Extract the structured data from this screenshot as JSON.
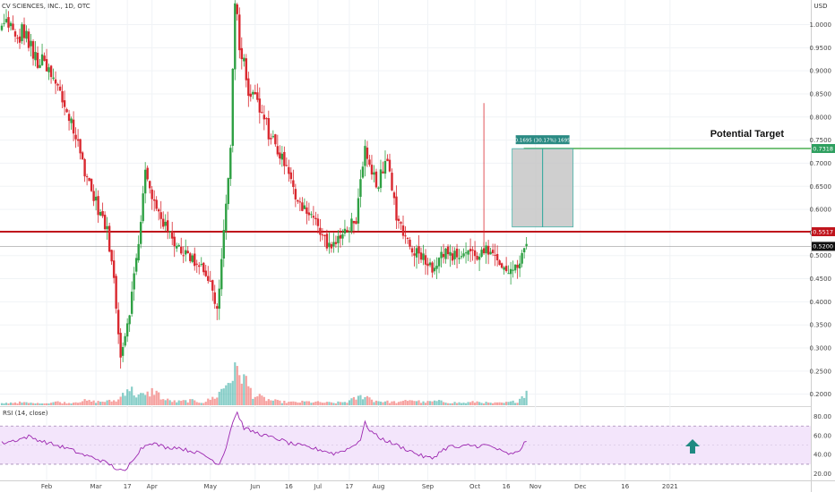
{
  "chart_data": [
    {
      "type": "candlestick",
      "symbol_title": "CV SCIENCES, INC., 1D, OTC",
      "currency": "USD",
      "ylim": [
        0.18,
        1.03
      ],
      "y_ticks": [
        "1.0000",
        "0.9500",
        "0.9000",
        "0.8500",
        "0.8000",
        "0.7500",
        "0.7000",
        "0.6500",
        "0.6000",
        "0.5500",
        "0.5000",
        "0.4500",
        "0.4000",
        "0.3500",
        "0.3000",
        "0.2500",
        "0.2000"
      ],
      "x_ticks": [
        "Feb",
        "Mar",
        "17",
        "Apr",
        "May",
        "Jun",
        "16",
        "Jul",
        "17",
        "Aug",
        "Sep",
        "Oct",
        "16",
        "Nov",
        "Dec",
        "16",
        "2021"
      ],
      "price_points": [
        {
          "t": 0,
          "c": 0.99
        },
        {
          "t": 3,
          "c": 1.01
        },
        {
          "t": 6,
          "c": 0.96
        },
        {
          "t": 10,
          "c": 0.99
        },
        {
          "t": 14,
          "c": 0.93
        },
        {
          "t": 19,
          "c": 0.91
        },
        {
          "t": 25,
          "c": 0.86
        },
        {
          "t": 31,
          "c": 0.79
        },
        {
          "t": 35,
          "c": 0.72
        },
        {
          "t": 40,
          "c": 0.64
        },
        {
          "t": 44,
          "c": 0.59
        },
        {
          "t": 47,
          "c": 0.55
        },
        {
          "t": 50,
          "c": 0.45
        },
        {
          "t": 53,
          "c": 0.28
        },
        {
          "t": 57,
          "c": 0.38
        },
        {
          "t": 61,
          "c": 0.53
        },
        {
          "t": 64,
          "c": 0.68
        },
        {
          "t": 67,
          "c": 0.62
        },
        {
          "t": 70,
          "c": 0.6
        },
        {
          "t": 73,
          "c": 0.56
        },
        {
          "t": 77,
          "c": 0.53
        },
        {
          "t": 81,
          "c": 0.51
        },
        {
          "t": 85,
          "c": 0.49
        },
        {
          "t": 89,
          "c": 0.48
        },
        {
          "t": 93,
          "c": 0.44
        },
        {
          "t": 96,
          "c": 0.38
        },
        {
          "t": 99,
          "c": 0.55
        },
        {
          "t": 102,
          "c": 0.73
        },
        {
          "t": 104,
          "c": 1.04
        },
        {
          "t": 107,
          "c": 0.93
        },
        {
          "t": 110,
          "c": 0.86
        },
        {
          "t": 114,
          "c": 0.83
        },
        {
          "t": 118,
          "c": 0.78
        },
        {
          "t": 122,
          "c": 0.74
        },
        {
          "t": 126,
          "c": 0.7
        },
        {
          "t": 130,
          "c": 0.64
        },
        {
          "t": 134,
          "c": 0.61
        },
        {
          "t": 138,
          "c": 0.59
        },
        {
          "t": 142,
          "c": 0.55
        },
        {
          "t": 146,
          "c": 0.52
        },
        {
          "t": 150,
          "c": 0.53
        },
        {
          "t": 154,
          "c": 0.56
        },
        {
          "t": 158,
          "c": 0.58
        },
        {
          "t": 162,
          "c": 0.72
        },
        {
          "t": 165,
          "c": 0.67
        },
        {
          "t": 168,
          "c": 0.66
        },
        {
          "t": 172,
          "c": 0.7
        },
        {
          "t": 176,
          "c": 0.59
        },
        {
          "t": 180,
          "c": 0.54
        },
        {
          "t": 184,
          "c": 0.51
        },
        {
          "t": 188,
          "c": 0.5
        },
        {
          "t": 192,
          "c": 0.47
        },
        {
          "t": 196,
          "c": 0.51
        },
        {
          "t": 200,
          "c": 0.5
        },
        {
          "t": 204,
          "c": 0.5
        },
        {
          "t": 208,
          "c": 0.51
        },
        {
          "t": 212,
          "c": 0.5
        },
        {
          "t": 216,
          "c": 0.51
        },
        {
          "t": 220,
          "c": 0.49
        },
        {
          "t": 224,
          "c": 0.48
        },
        {
          "t": 228,
          "c": 0.46
        },
        {
          "t": 231,
          "c": 0.49
        },
        {
          "t": 234,
          "c": 0.52
        }
      ],
      "volume_points": [
        {
          "t": 0,
          "v": 0.15
        },
        {
          "t": 6,
          "v": 0.25
        },
        {
          "t": 12,
          "v": 0.2
        },
        {
          "t": 18,
          "v": 0.12
        },
        {
          "t": 24,
          "v": 0.3
        },
        {
          "t": 30,
          "v": 0.18
        },
        {
          "t": 36,
          "v": 0.4
        },
        {
          "t": 42,
          "v": 0.3
        },
        {
          "t": 48,
          "v": 0.35
        },
        {
          "t": 52,
          "v": 0.45
        },
        {
          "t": 56,
          "v": 1.6
        },
        {
          "t": 60,
          "v": 0.9
        },
        {
          "t": 64,
          "v": 0.8
        },
        {
          "t": 68,
          "v": 1.3
        },
        {
          "t": 72,
          "v": 0.5
        },
        {
          "t": 78,
          "v": 0.3
        },
        {
          "t": 84,
          "v": 0.4
        },
        {
          "t": 90,
          "v": 0.25
        },
        {
          "t": 96,
          "v": 0.8
        },
        {
          "t": 100,
          "v": 1.8
        },
        {
          "t": 103,
          "v": 2.6
        },
        {
          "t": 106,
          "v": 3.0
        },
        {
          "t": 109,
          "v": 2.0
        },
        {
          "t": 112,
          "v": 0.9
        },
        {
          "t": 118,
          "v": 0.5
        },
        {
          "t": 124,
          "v": 0.3
        },
        {
          "t": 130,
          "v": 0.25
        },
        {
          "t": 136,
          "v": 0.3
        },
        {
          "t": 142,
          "v": 0.25
        },
        {
          "t": 148,
          "v": 0.2
        },
        {
          "t": 154,
          "v": 0.3
        },
        {
          "t": 158,
          "v": 0.6
        },
        {
          "t": 162,
          "v": 0.85
        },
        {
          "t": 166,
          "v": 0.4
        },
        {
          "t": 172,
          "v": 0.3
        },
        {
          "t": 178,
          "v": 0.25
        },
        {
          "t": 182,
          "v": 0.5
        },
        {
          "t": 188,
          "v": 0.25
        },
        {
          "t": 194,
          "v": 0.35
        },
        {
          "t": 200,
          "v": 0.25
        },
        {
          "t": 206,
          "v": 0.2
        },
        {
          "t": 212,
          "v": 0.3
        },
        {
          "t": 218,
          "v": 0.18
        },
        {
          "t": 224,
          "v": 0.2
        },
        {
          "t": 230,
          "v": 0.35
        },
        {
          "t": 234,
          "v": 1.2
        }
      ],
      "price_levels": [
        {
          "value": 0.5517,
          "label": "0.5517",
          "color": "#c0141c"
        },
        {
          "value": 0.52,
          "label": "0.5200",
          "color": "#111111"
        },
        {
          "value": 0.7318,
          "label": "0.7318",
          "color": "#26a69a"
        }
      ],
      "measure_box": {
        "from": 0.562,
        "to": 0.7315,
        "label": "0.1695 (30.17%) 1695"
      },
      "annotation": "Potential Target",
      "up_color": "#26a69a",
      "down_color": "#ef5350",
      "bull_candle_color": "#2ea043",
      "bear_candle_color": "#d9282f"
    },
    {
      "type": "line",
      "legend": "RSI (14, close)",
      "ylim": [
        14,
        88
      ],
      "y_ticks": [
        "80.00",
        "60.00",
        "40.00",
        "20.00"
      ],
      "bands": [
        30,
        70
      ],
      "arrow_color": "#1f8a82",
      "points": [
        {
          "t": 0,
          "r": 52
        },
        {
          "t": 6,
          "r": 55
        },
        {
          "t": 12,
          "r": 59
        },
        {
          "t": 18,
          "r": 54
        },
        {
          "t": 24,
          "r": 50
        },
        {
          "t": 30,
          "r": 46
        },
        {
          "t": 36,
          "r": 40
        },
        {
          "t": 42,
          "r": 36
        },
        {
          "t": 48,
          "r": 30
        },
        {
          "t": 52,
          "r": 24
        },
        {
          "t": 55,
          "r": 22
        },
        {
          "t": 58,
          "r": 34
        },
        {
          "t": 62,
          "r": 46
        },
        {
          "t": 66,
          "r": 53
        },
        {
          "t": 70,
          "r": 50
        },
        {
          "t": 74,
          "r": 47
        },
        {
          "t": 78,
          "r": 48
        },
        {
          "t": 82,
          "r": 45
        },
        {
          "t": 86,
          "r": 43
        },
        {
          "t": 90,
          "r": 40
        },
        {
          "t": 94,
          "r": 34
        },
        {
          "t": 97,
          "r": 30
        },
        {
          "t": 100,
          "r": 48
        },
        {
          "t": 103,
          "r": 75
        },
        {
          "t": 105,
          "r": 84
        },
        {
          "t": 108,
          "r": 68
        },
        {
          "t": 112,
          "r": 64
        },
        {
          "t": 116,
          "r": 61
        },
        {
          "t": 120,
          "r": 58
        },
        {
          "t": 124,
          "r": 56
        },
        {
          "t": 128,
          "r": 52
        },
        {
          "t": 132,
          "r": 50
        },
        {
          "t": 136,
          "r": 48
        },
        {
          "t": 140,
          "r": 46
        },
        {
          "t": 144,
          "r": 44
        },
        {
          "t": 148,
          "r": 41
        },
        {
          "t": 152,
          "r": 44
        },
        {
          "t": 156,
          "r": 48
        },
        {
          "t": 160,
          "r": 56
        },
        {
          "t": 162,
          "r": 73
        },
        {
          "t": 164,
          "r": 66
        },
        {
          "t": 168,
          "r": 58
        },
        {
          "t": 172,
          "r": 54
        },
        {
          "t": 176,
          "r": 50
        },
        {
          "t": 180,
          "r": 46
        },
        {
          "t": 184,
          "r": 42
        },
        {
          "t": 188,
          "r": 38
        },
        {
          "t": 192,
          "r": 36
        },
        {
          "t": 196,
          "r": 44
        },
        {
          "t": 200,
          "r": 49
        },
        {
          "t": 204,
          "r": 47
        },
        {
          "t": 208,
          "r": 50
        },
        {
          "t": 212,
          "r": 49
        },
        {
          "t": 216,
          "r": 50
        },
        {
          "t": 220,
          "r": 47
        },
        {
          "t": 224,
          "r": 42
        },
        {
          "t": 228,
          "r": 40
        },
        {
          "t": 231,
          "r": 45
        },
        {
          "t": 234,
          "r": 55
        }
      ]
    }
  ]
}
